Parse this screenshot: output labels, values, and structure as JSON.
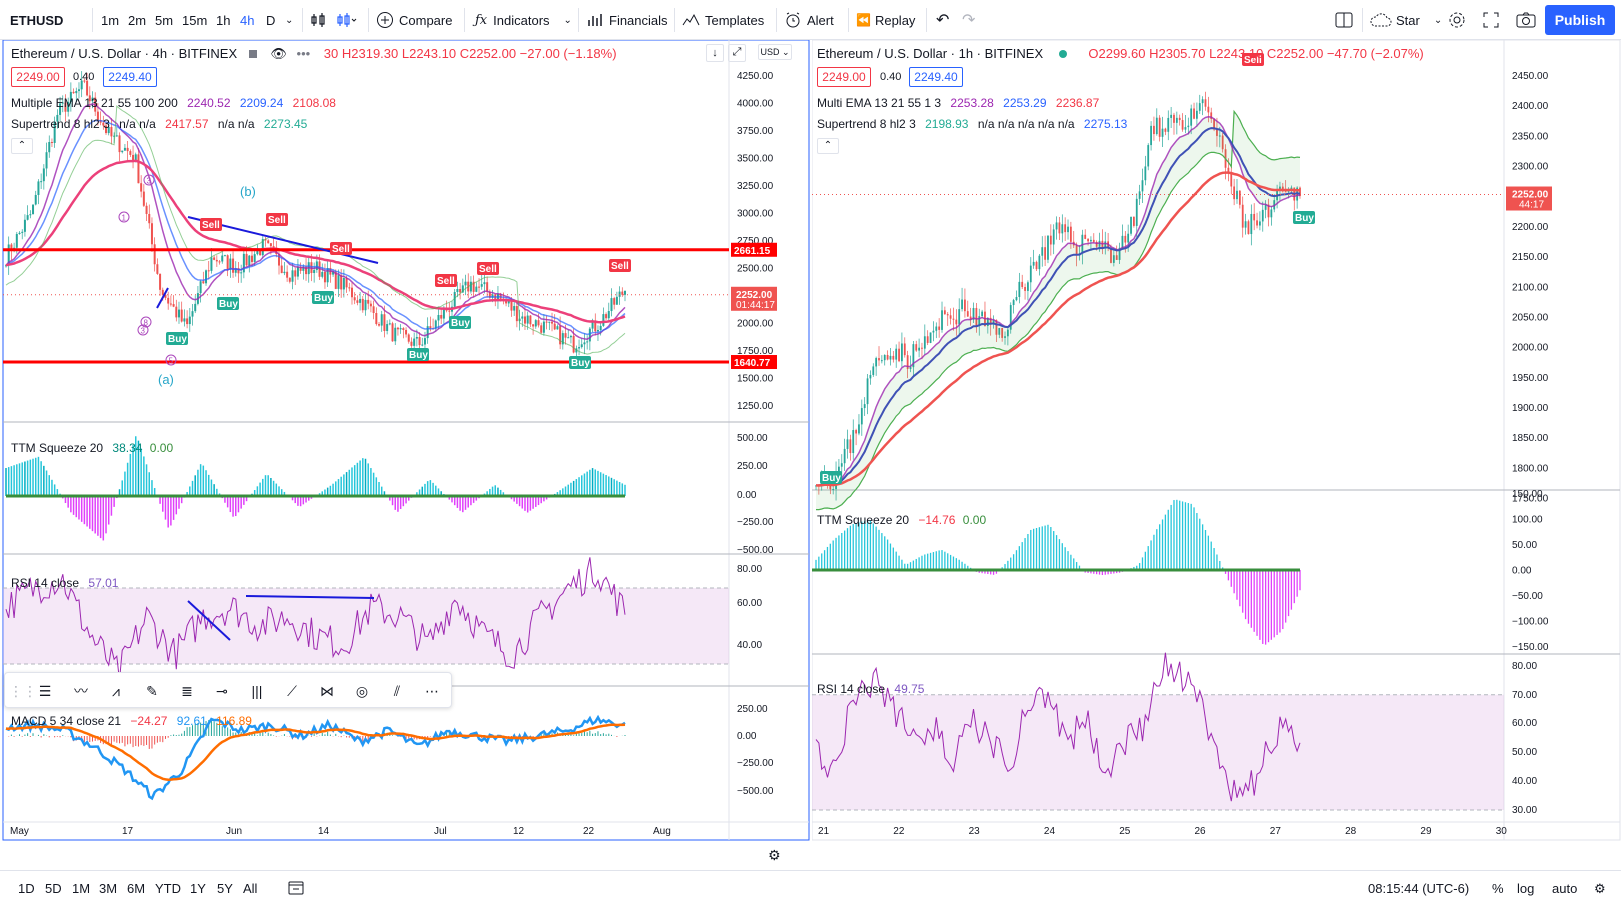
{
  "topbar": {
    "symbol": "ETHUSD",
    "intervals": [
      "1m",
      "2m",
      "5m",
      "15m",
      "1h",
      "4h",
      "D"
    ],
    "active_interval": "4h",
    "compare": "Compare",
    "indicators": "Indicators",
    "financials": "Financials",
    "templates": "Templates",
    "alert": "Alert",
    "replay": "Replay",
    "star": "Star",
    "publish": "Publish"
  },
  "left_chart": {
    "title": "Ethereum / U.S. Dollar · 4h · BITFINEX",
    "ohlc": "30 H2319.30 L2243.10 C2252.00 −27.00 (−1.18%)",
    "bid": "2249.00",
    "spread": "0.40",
    "ask": "2249.40",
    "ema_legend": "Multiple EMA 13 21 55 100 200",
    "ema_values": [
      "2240.52",
      "2209.24",
      "2108.08"
    ],
    "st_legend": "Supertrend 8 hl2 3",
    "st_values": "n/a n/a",
    "st_v1": "2417.57",
    "st_v2": "n/a n/a",
    "st_v3": "2273.45",
    "currency": "USD",
    "price_ticks": [
      "4250.00",
      "4000.00",
      "3750.00",
      "3500.00",
      "3250.00",
      "3000.00",
      "2750.00",
      "2500.00",
      "2250.00",
      "2000.00",
      "1750.00",
      "1500.00",
      "1250.00"
    ],
    "level_high": "2661.15",
    "level_low": "1640.77",
    "last_price": "2252.00",
    "countdown": "01:44:17",
    "wave_a": "(a)",
    "wave_b": "(b)",
    "time_ticks": [
      "May",
      "17",
      "Jun",
      "14",
      "Jul",
      "12",
      "22",
      "Aug"
    ],
    "signals": {
      "sell": "Sell",
      "buy": "Buy"
    }
  },
  "left_ttm": {
    "legend": "TTM Squeeze 20",
    "v1": "38.34",
    "v2": "0.00",
    "ticks": [
      "500.00",
      "250.00",
      "0.00",
      "−250.00",
      "−500.00"
    ]
  },
  "left_rsi": {
    "legend": "RSI 14 close",
    "value": "57.01",
    "ticks": [
      "80.00",
      "60.00",
      "40.00"
    ]
  },
  "left_macd": {
    "legend": "MACD 5 34 close 21",
    "v1": "−24.27",
    "v2": "92.61",
    "v3": "116.89",
    "ticks": [
      "250.00",
      "0.00",
      "−250.00",
      "−500.00"
    ]
  },
  "right_chart": {
    "title": "Ethereum / U.S. Dollar · 1h · BITFINEX",
    "ohlc": "O2299.60 H2305.70 L2243.10 C2252.00 −47.70 (−2.07%)",
    "bid": "2249.00",
    "spread": "0.40",
    "ask": "2249.40",
    "ema_legend": "Multi EMA 13 21 55 1 3",
    "ema_values": [
      "2253.28",
      "2253.29",
      "2236.87"
    ],
    "st_legend": "Supertrend 8 hl2 3",
    "st_v1": "2198.93",
    "st_mid": "n/a n/a n/a n/a n/a",
    "st_v3": "2275.13",
    "price_ticks": [
      "2450.00",
      "2400.00",
      "2350.00",
      "2300.00",
      "2250.00",
      "2200.00",
      "2150.00",
      "2100.00",
      "2050.00",
      "2000.00",
      "1950.00",
      "1900.00",
      "1850.00",
      "1800.00",
      "1750.00"
    ],
    "last_price": "2252.00",
    "countdown": "44:17",
    "time_ticks": [
      "21",
      "22",
      "23",
      "24",
      "25",
      "26",
      "27",
      "28",
      "29",
      "30"
    ],
    "signals": {
      "sell": "Sell",
      "buy": "Buy"
    }
  },
  "right_ttm": {
    "legend": "TTM Squeeze 20",
    "v1": "−14.76",
    "v2": "0.00",
    "ticks": [
      "150.00",
      "100.00",
      "50.00",
      "0.00",
      "−50.00",
      "−100.00",
      "−150.00"
    ]
  },
  "right_rsi": {
    "legend": "RSI 14 close",
    "value": "49.75",
    "ticks": [
      "80.00",
      "70.00",
      "60.00",
      "50.00",
      "40.00",
      "30.00"
    ]
  },
  "bottombar": {
    "ranges": [
      "1D",
      "5D",
      "1M",
      "3M",
      "6M",
      "YTD",
      "1Y",
      "5Y",
      "All"
    ],
    "clock": "08:15:44 (UTC-6)",
    "percent": "%",
    "log": "log",
    "auto": "auto"
  }
}
